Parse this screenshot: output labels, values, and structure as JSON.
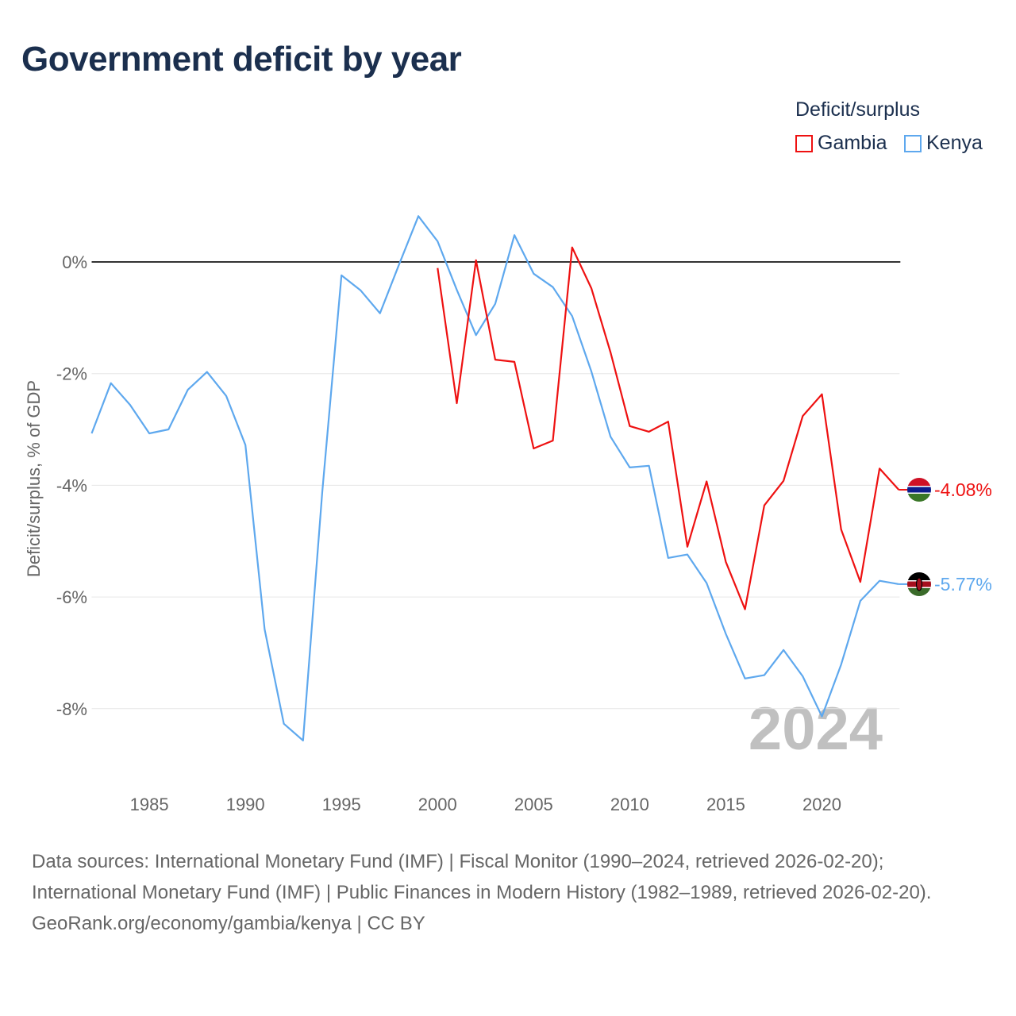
{
  "title": "Government deficit by year",
  "legend": {
    "title": "Deficit/surplus",
    "items": [
      {
        "name": "Gambia",
        "color": "#ee1111"
      },
      {
        "name": "Kenya",
        "color": "#5ea8ee"
      }
    ]
  },
  "year_label": "2024",
  "chart_data": {
    "type": "line",
    "title": "Government deficit by year",
    "xlabel": "",
    "ylabel": "Deficit/surplus, % of GDP",
    "xlim": [
      1982,
      2024
    ],
    "ylim": [
      -9,
      1
    ],
    "grid": true,
    "legend_position": "top-right",
    "x_ticks": [
      1985,
      1990,
      1995,
      2000,
      2005,
      2010,
      2015,
      2020
    ],
    "y_ticks": [
      0,
      -2,
      -4,
      -6,
      -8
    ],
    "y_tick_labels": [
      "0%",
      "-2%",
      "-4%",
      "-6%",
      "-8%"
    ],
    "series": [
      {
        "name": "Kenya",
        "color": "#5ea8ee",
        "end_label": "-5.77%",
        "x": [
          1982,
          1983,
          1984,
          1985,
          1986,
          1987,
          1988,
          1989,
          1990,
          1991,
          1992,
          1993,
          1994,
          1995,
          1996,
          1997,
          1998,
          1999,
          2000,
          2001,
          2002,
          2003,
          2004,
          2005,
          2006,
          2007,
          2008,
          2009,
          2010,
          2011,
          2012,
          2013,
          2014,
          2015,
          2016,
          2017,
          2018,
          2019,
          2020,
          2021,
          2022,
          2023,
          2024
        ],
        "values": [
          -3.07,
          -2.17,
          -2.56,
          -3.07,
          -3.0,
          -2.29,
          -1.97,
          -2.4,
          -3.28,
          -6.58,
          -8.27,
          -8.57,
          -4.12,
          -0.24,
          -0.51,
          -0.92,
          -0.04,
          0.82,
          0.37,
          -0.5,
          -1.31,
          -0.75,
          0.48,
          -0.21,
          -0.45,
          -0.97,
          -1.96,
          -3.13,
          -3.68,
          -3.65,
          -5.3,
          -5.24,
          -5.75,
          -6.66,
          -7.46,
          -7.4,
          -6.95,
          -7.42,
          -8.14,
          -7.21,
          -6.07,
          -5.71,
          -5.77
        ]
      },
      {
        "name": "Gambia",
        "color": "#ee1111",
        "end_label": "-4.08%",
        "x": [
          2000,
          2001,
          2002,
          2003,
          2004,
          2005,
          2006,
          2007,
          2008,
          2009,
          2010,
          2011,
          2012,
          2013,
          2014,
          2015,
          2016,
          2017,
          2018,
          2019,
          2020,
          2021,
          2022,
          2023,
          2024
        ],
        "values": [
          -0.11,
          -2.53,
          0.03,
          -1.75,
          -1.79,
          -3.34,
          -3.2,
          0.26,
          -0.47,
          -1.62,
          -2.94,
          -3.04,
          -2.86,
          -5.1,
          -3.93,
          -5.37,
          -6.22,
          -4.36,
          -3.92,
          -2.76,
          -2.37,
          -4.79,
          -5.73,
          -3.7,
          -4.08
        ]
      }
    ]
  },
  "footer": {
    "sources": "Data sources: International Monetary Fund (IMF) | Fiscal Monitor (1990–2024, retrieved 2026-02-20); International Monetary Fund (IMF) | Public Finances in Modern History (1982–1989, retrieved 2026-02-20).",
    "credit": "GeoRank.org/economy/gambia/kenya | CC BY"
  }
}
